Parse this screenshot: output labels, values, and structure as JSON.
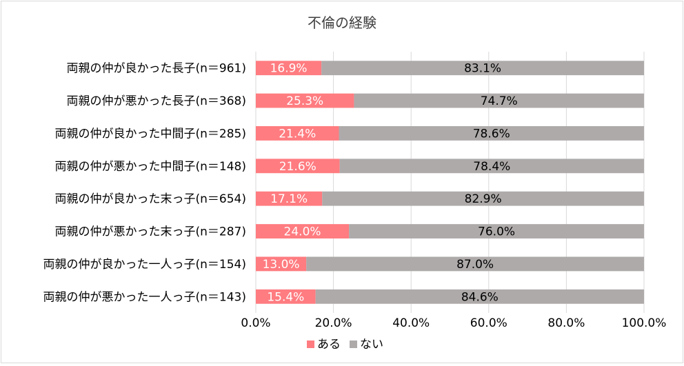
{
  "chart_data": {
    "type": "bar",
    "orientation": "horizontal",
    "stacked": true,
    "title": "不倫の経験",
    "categories": [
      "両親の仲が良かった長子(n＝961)",
      "両親の仲が悪かった長子(n＝368)",
      "両親の仲が良かった中間子(n＝285)",
      "両親の仲が悪かった中間子(n＝148)",
      "両親の仲が良かった末っ子(n＝654)",
      "両親の仲が悪かった末っ子(n＝287)",
      "両親の仲が良かった一人っ子(n＝154)",
      "両親の仲が悪かった一人っ子(n＝143)"
    ],
    "series": [
      {
        "name": "ある",
        "color": "#ff7c80",
        "values": [
          16.9,
          25.3,
          21.4,
          21.6,
          17.1,
          24.0,
          13.0,
          15.4
        ]
      },
      {
        "name": "ない",
        "color": "#aeaaaa",
        "values": [
          83.1,
          74.7,
          78.6,
          78.4,
          82.9,
          76.0,
          87.0,
          84.6
        ]
      }
    ],
    "data_labels": [
      [
        "16.9%",
        "25.3%",
        "21.4%",
        "21.6%",
        "17.1%",
        "24.0%",
        "13.0%",
        "15.4%"
      ],
      [
        "83.1%",
        "74.7%",
        "78.6%",
        "78.4%",
        "82.9%",
        "76.0%",
        "87.0%",
        "84.6%"
      ]
    ],
    "xlim": [
      0,
      100
    ],
    "x_ticks": [
      0,
      20,
      40,
      60,
      80,
      100
    ],
    "x_tick_labels": [
      "0.0%",
      "20.0%",
      "40.0%",
      "60.0%",
      "80.0%",
      "100.0%"
    ],
    "grid": true,
    "legend_position": "bottom",
    "gridline_color": "#d9d9d9",
    "text_color": "#000000"
  }
}
